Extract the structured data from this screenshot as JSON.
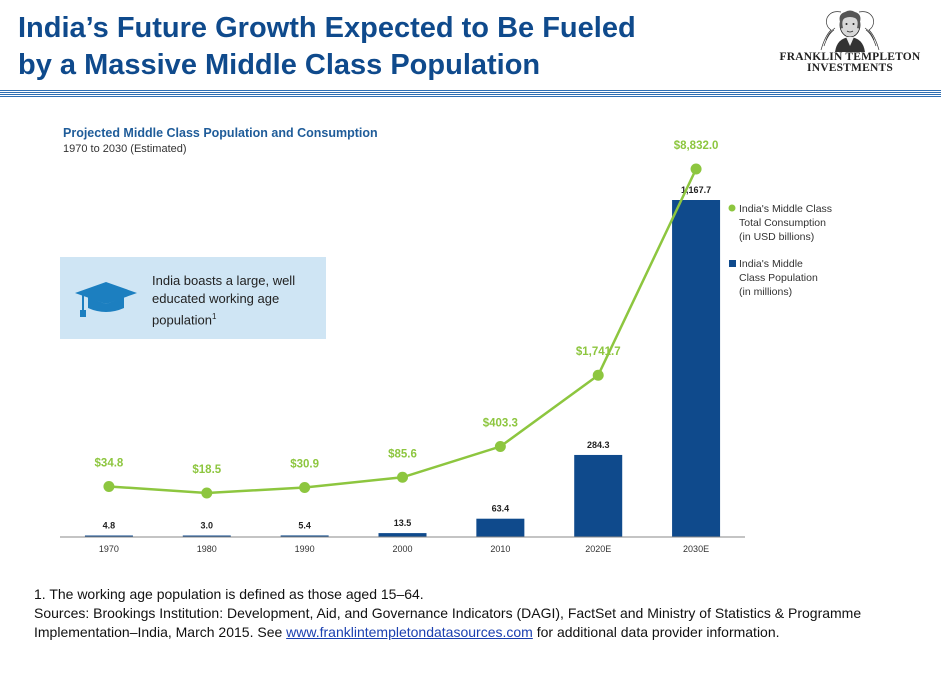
{
  "header": {
    "title_line1": "India’s Future Growth Expected to Be Fueled",
    "title_line2": "by a Massive Middle Class Population",
    "logo_line1": "FRANKLIN TEMPLETON",
    "logo_line2": "INVESTMENTS"
  },
  "callout": {
    "text": "India boasts a large, well educated working age population",
    "sup": "1",
    "icon": "graduation-cap-icon"
  },
  "colors": {
    "title": "#0f4a8c",
    "bar": "#0f4a8c",
    "line": "#8dc63f",
    "callout_bg": "#cfe5f4"
  },
  "chart_data": {
    "type": "bar",
    "title": "Projected Middle Class Population and Consumption",
    "subtitle": "1970 to 2030 (Estimated)",
    "categories": [
      "1970",
      "1980",
      "1990",
      "2000",
      "2010",
      "2020E",
      "2030E"
    ],
    "series": [
      {
        "name": "India's Middle Class Total Consumption (in USD billions)",
        "type": "line",
        "values": [
          34.8,
          18.5,
          30.9,
          85.6,
          403.3,
          1741.7,
          8832.0
        ],
        "labels": [
          "$34.8",
          "$18.5",
          "$30.9",
          "$85.6",
          "$403.3",
          "$1,741.7",
          "$8,832.0"
        ]
      },
      {
        "name": "India's Middle Class Population (in millions)",
        "type": "bar",
        "values": [
          4.8,
          3.0,
          5.4,
          13.5,
          63.4,
          284.3,
          1167.7
        ],
        "labels": [
          "4.8",
          "3.0",
          "5.4",
          "13.5",
          "63.4",
          "284.3",
          "1,167.7"
        ]
      }
    ],
    "legend": [
      {
        "line1": "India's Middle Class",
        "line2": "Total Consumption",
        "line3": "(in USD billions)"
      },
      {
        "line1": "India's Middle",
        "line2": "Class Population",
        "line3": "(in millions)"
      }
    ],
    "legend_position": "right"
  },
  "footnote": {
    "line1": "1. The working age population is defined as those aged 15–64.",
    "sources_prefix": "Sources: Brookings Institution:  Development, Aid, and Governance Indicators (DAGI),  FactSet and Ministry of Statistics  & Programme Implementation–India, March 2015. See ",
    "link": "www.franklintempletondatasources.com",
    "sources_suffix": " for additional data provider information."
  }
}
